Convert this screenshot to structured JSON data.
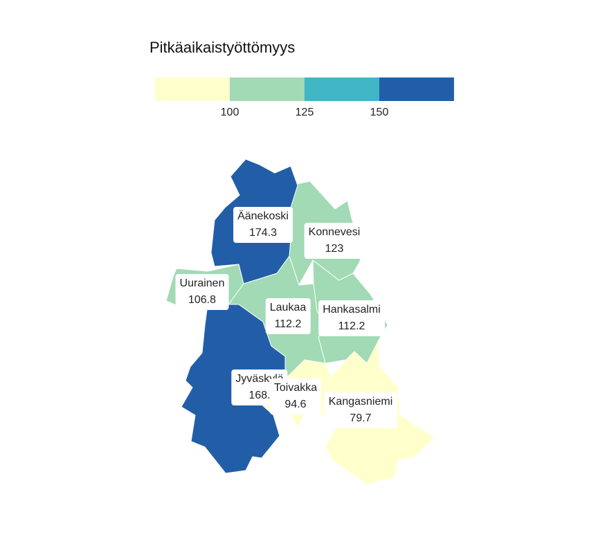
{
  "legend": {
    "title": "Pitkäaikaistyöttömyys",
    "colors": [
      "#ffffcc",
      "#a1dab4",
      "#41b6c4",
      "#225ea8"
    ],
    "ticks": [
      "100",
      "125",
      "150"
    ]
  },
  "municipalities": [
    {
      "name": "Äänekoski",
      "value": "174.3",
      "color": "#225ea8"
    },
    {
      "name": "Konnevesi",
      "value": "123",
      "color": "#a1dab4"
    },
    {
      "name": "Uurainen",
      "value": "106.8",
      "color": "#a1dab4"
    },
    {
      "name": "Laukaa",
      "value": "112.2",
      "color": "#a1dab4"
    },
    {
      "name": "Hankasalmi",
      "value": "112.2",
      "color": "#a1dab4"
    },
    {
      "name": "Jyväskylä",
      "value": "168.",
      "color": "#225ea8"
    },
    {
      "name": "Toivakka",
      "value": "94.6",
      "color": "#ffffcc"
    },
    {
      "name": "Kangasniemi",
      "value": "79.7",
      "color": "#ffffcc"
    }
  ]
}
